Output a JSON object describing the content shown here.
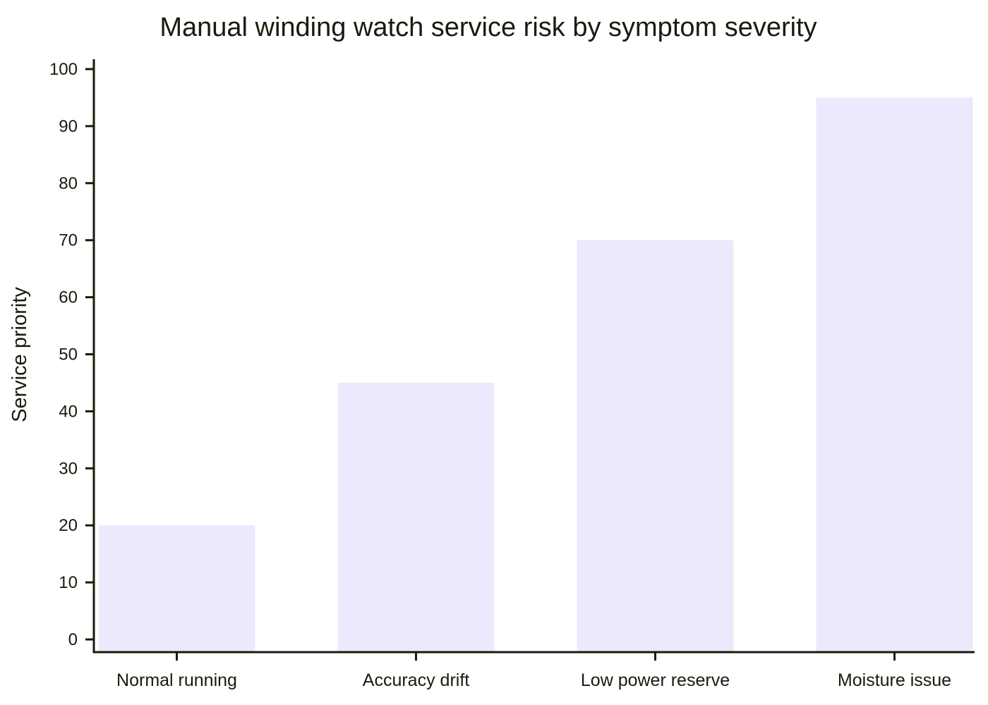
{
  "chart_data": {
    "type": "bar",
    "title": "Manual winding watch service risk by symptom severity",
    "xlabel": "",
    "ylabel": "Service priority",
    "categories": [
      "Normal running",
      "Accuracy drift",
      "Low power reserve",
      "Moisture issue"
    ],
    "values": [
      20,
      45,
      70,
      95
    ],
    "ylim": [
      0,
      100
    ],
    "yticks": [
      0,
      10,
      20,
      30,
      40,
      50,
      60,
      70,
      80,
      90,
      100
    ],
    "grid": false,
    "legend": "none",
    "colors": {
      "bar": "#ebeafc",
      "axis": "#1a1a0e",
      "text": "#1a1a0e"
    }
  }
}
